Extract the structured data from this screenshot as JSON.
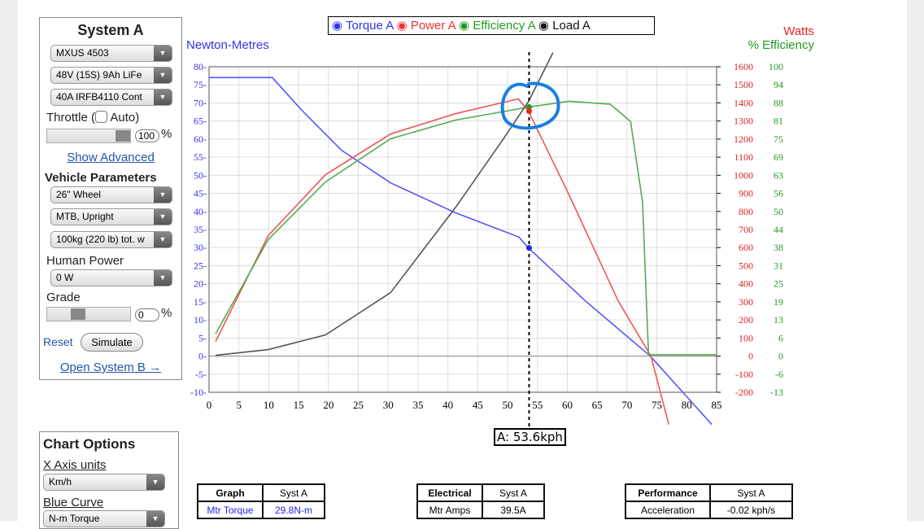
{
  "system_a": {
    "title": "System A",
    "motor": "MXUS 4503",
    "battery": "48V (15S) 9Ah LiFe",
    "controller": "40A IRFB4110 Cont",
    "throttle_label": "Throttle (",
    "auto_label": "Auto)",
    "throttle_value": "100",
    "percent": "%",
    "throttle_fraction": 1.0,
    "show_advanced": "Show Advanced",
    "vehicle_title": "Vehicle Parameters",
    "wheel": "26\"  Wheel",
    "bike": "MTB, Upright",
    "weight": "100kg (220 lb) tot. w",
    "human_power_label": "Human Power",
    "human_power": "0 W",
    "grade_label": "Grade",
    "grade_value": "0",
    "reset": "Reset",
    "simulate": "Simulate",
    "open_b": "Open System B →"
  },
  "chart_options": {
    "title": "Chart Options",
    "x_axis_label": "X Axis units",
    "x_axis_value": "Km/h",
    "blue_curve_label": "Blue Curve",
    "blue_curve_value": "N-m Torque"
  },
  "tables": {
    "graph": {
      "headers": [
        "Graph",
        "Syst A"
      ],
      "row": [
        "Mtr Torque",
        "29.8N-m"
      ]
    },
    "electrical": {
      "headers": [
        "Electrical",
        "Syst A"
      ],
      "row": [
        "Mtr Amps",
        "39.5A"
      ]
    },
    "performance": {
      "headers": [
        "Performance",
        "Syst A"
      ],
      "row": [
        "Acceleration",
        "-0.02 kph/s"
      ]
    }
  },
  "chart_data": {
    "type": "line",
    "legend": [
      "Torque A",
      "Power A",
      "Efficiency A",
      "Load A"
    ],
    "left_label": "Newton-Metres",
    "right_label_watts": "Watts",
    "right_label_eff": "% Efficiency",
    "xlim": [
      0,
      85
    ],
    "ylim_left": [
      -10,
      80
    ],
    "ylim_watts": [
      -200,
      1600
    ],
    "ylim_eff": [
      -13,
      100
    ],
    "x_ticks": [
      0,
      5,
      10,
      15,
      20,
      25,
      30,
      35,
      40,
      45,
      50,
      55,
      60,
      65,
      70,
      75,
      80,
      85
    ],
    "y_left_ticks": [
      80,
      75,
      70,
      65,
      60,
      55,
      50,
      45,
      40,
      35,
      30,
      25,
      20,
      15,
      10,
      5,
      0,
      -5,
      -10
    ],
    "watts_ticks": [
      1600,
      1500,
      1400,
      1300,
      1200,
      1100,
      1000,
      900,
      800,
      700,
      600,
      500,
      400,
      300,
      200,
      100,
      0,
      -100,
      -200
    ],
    "eff_ticks": [
      100,
      94,
      88,
      81,
      75,
      69,
      63,
      56,
      50,
      44,
      38,
      31,
      25,
      19,
      13,
      6,
      0,
      -6,
      -13
    ],
    "colors": {
      "torque": "#5555ff",
      "power": "#ee5555",
      "efficiency": "#55aa55",
      "load": "#555555"
    },
    "series": [
      {
        "name": "Torque A",
        "axis": "left",
        "points": [
          [
            0,
            77
          ],
          [
            10.6,
            77
          ],
          [
            15.4,
            68.2
          ],
          [
            22.2,
            56.9
          ],
          [
            30.4,
            47.9
          ],
          [
            41.3,
            39.6
          ],
          [
            51.9,
            32.9
          ],
          [
            53.5,
            29.9
          ],
          [
            63,
            15.3
          ],
          [
            73.9,
            0
          ],
          [
            84.2,
            -18.9
          ]
        ]
      },
      {
        "name": "Power A",
        "axis": "watts",
        "points": [
          [
            1.1,
            81
          ],
          [
            9.9,
            666
          ],
          [
            19.5,
            1003
          ],
          [
            30.4,
            1228
          ],
          [
            41.3,
            1341
          ],
          [
            51.8,
            1422
          ],
          [
            53.5,
            1354
          ],
          [
            60.3,
            891
          ],
          [
            68.5,
            306
          ],
          [
            74,
            0
          ],
          [
            77,
            -378
          ]
        ]
      },
      {
        "name": "Efficiency A",
        "axis": "eff",
        "points": [
          [
            1.1,
            7.3
          ],
          [
            9.9,
            40
          ],
          [
            19.5,
            60
          ],
          [
            30.4,
            75
          ],
          [
            41.3,
            81.5
          ],
          [
            53.5,
            86
          ],
          [
            60.3,
            88
          ],
          [
            67.2,
            87
          ],
          [
            70.6,
            81
          ],
          [
            72.6,
            53
          ],
          [
            73.6,
            0
          ],
          [
            85,
            0
          ]
        ]
      },
      {
        "name": "Load A",
        "axis": "watts",
        "points": [
          [
            1.1,
            4.5
          ],
          [
            9.9,
            36
          ],
          [
            19.5,
            117
          ],
          [
            30.4,
            351
          ],
          [
            41.3,
            823
          ],
          [
            49.4,
            1206
          ],
          [
            53.5,
            1408
          ],
          [
            57.6,
            1678
          ]
        ]
      }
    ],
    "cursor_x": 53.6,
    "cursor_label": "A: 53.6kph"
  }
}
